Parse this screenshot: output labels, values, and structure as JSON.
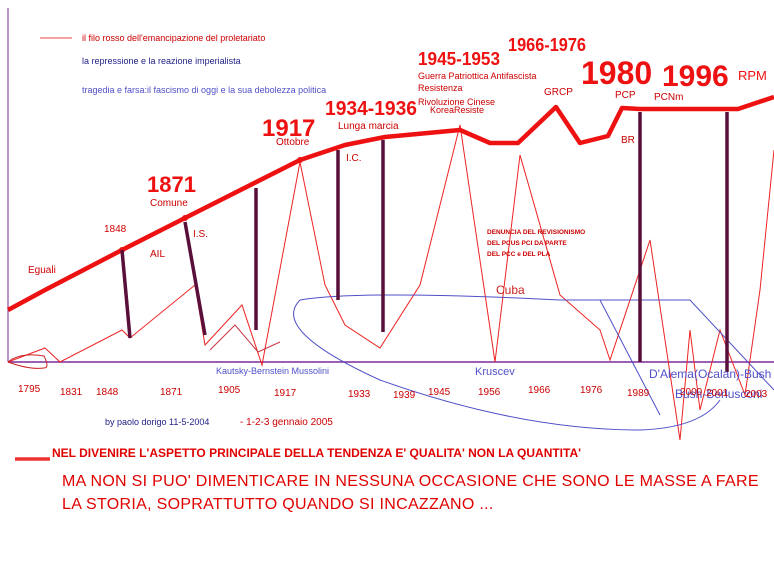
{
  "legend": {
    "red_thread": "il filo rosso dell'emancipazione del proletariato",
    "repression": "la repressione e la reazione imperialista",
    "tragedy": "tragedia e farsa:il fascismo di oggi e la sua debolezza politica"
  },
  "colors": {
    "main_red": "#ee1111",
    "dark_purple": "#5a0f3a",
    "blue": "#5050c8",
    "axis": "#7a2a9a"
  },
  "labels": {
    "eguali": "Eguali",
    "y1848": "1848",
    "ail": "AIL",
    "y1871": "1871",
    "comune": "Comune",
    "is": "I.S.",
    "y1917": "1917",
    "ottobre": "Ottobre",
    "y1934": "1934-1936",
    "lunga_marcia": "Lunga marcia",
    "ic": "I.C.",
    "y1945": "1945-1953",
    "guerra": "Guerra Patriottica Antifascista",
    "resistenza": "Resistenza",
    "rivoluzione": "Rivoluzione Cinese",
    "korea": "KoreaResiste",
    "y1966": "1966-1976",
    "grcp": "GRCP",
    "y1980": "1980",
    "pcp": "PCP",
    "br": "BR",
    "y1996": "1996",
    "pcnm": "PCNm",
    "rpm": "RPM",
    "denuncia1": "DENUNCIA DEL REVISIONISMO",
    "denuncia2": "DEL PCUS PCI DA PARTE",
    "denuncia3": "DEL PCC e DEL PLA",
    "cuba": "Cuba",
    "kautsky": "Kautsky-Bernstein Mussolini",
    "kruscev": "Kruscev",
    "dalema": "D'Alema(Ocalan)-Bush",
    "bush": "Bush-Berlusconi",
    "bottom_y2000": "2000",
    "bottom_y2003": "2003",
    "bottom_y2001": "2001"
  },
  "axis_years": [
    "1795",
    "1831",
    "1848",
    "1871",
    "1905",
    "1917",
    "1933",
    "1939",
    "1945",
    "1956",
    "1966",
    "1976",
    "1989"
  ],
  "credit": "by paolo dorigo 11-5-2004",
  "date_note": "- 1-2-3 gennaio 2005",
  "bold_line": "NEL DIVENIRE L'ASPETTO PRINCIPALE DELLA TENDENZA E' QUALITA' NON LA QUANTITA'",
  "caps_text": "MA NON SI PUO' DIMENTICARE IN NESSUNA OCCASIONE CHE SONO LE MASSE A FARE LA STORIA, SOPRATTUTTO QUANDO SI INCAZZANO ..."
}
